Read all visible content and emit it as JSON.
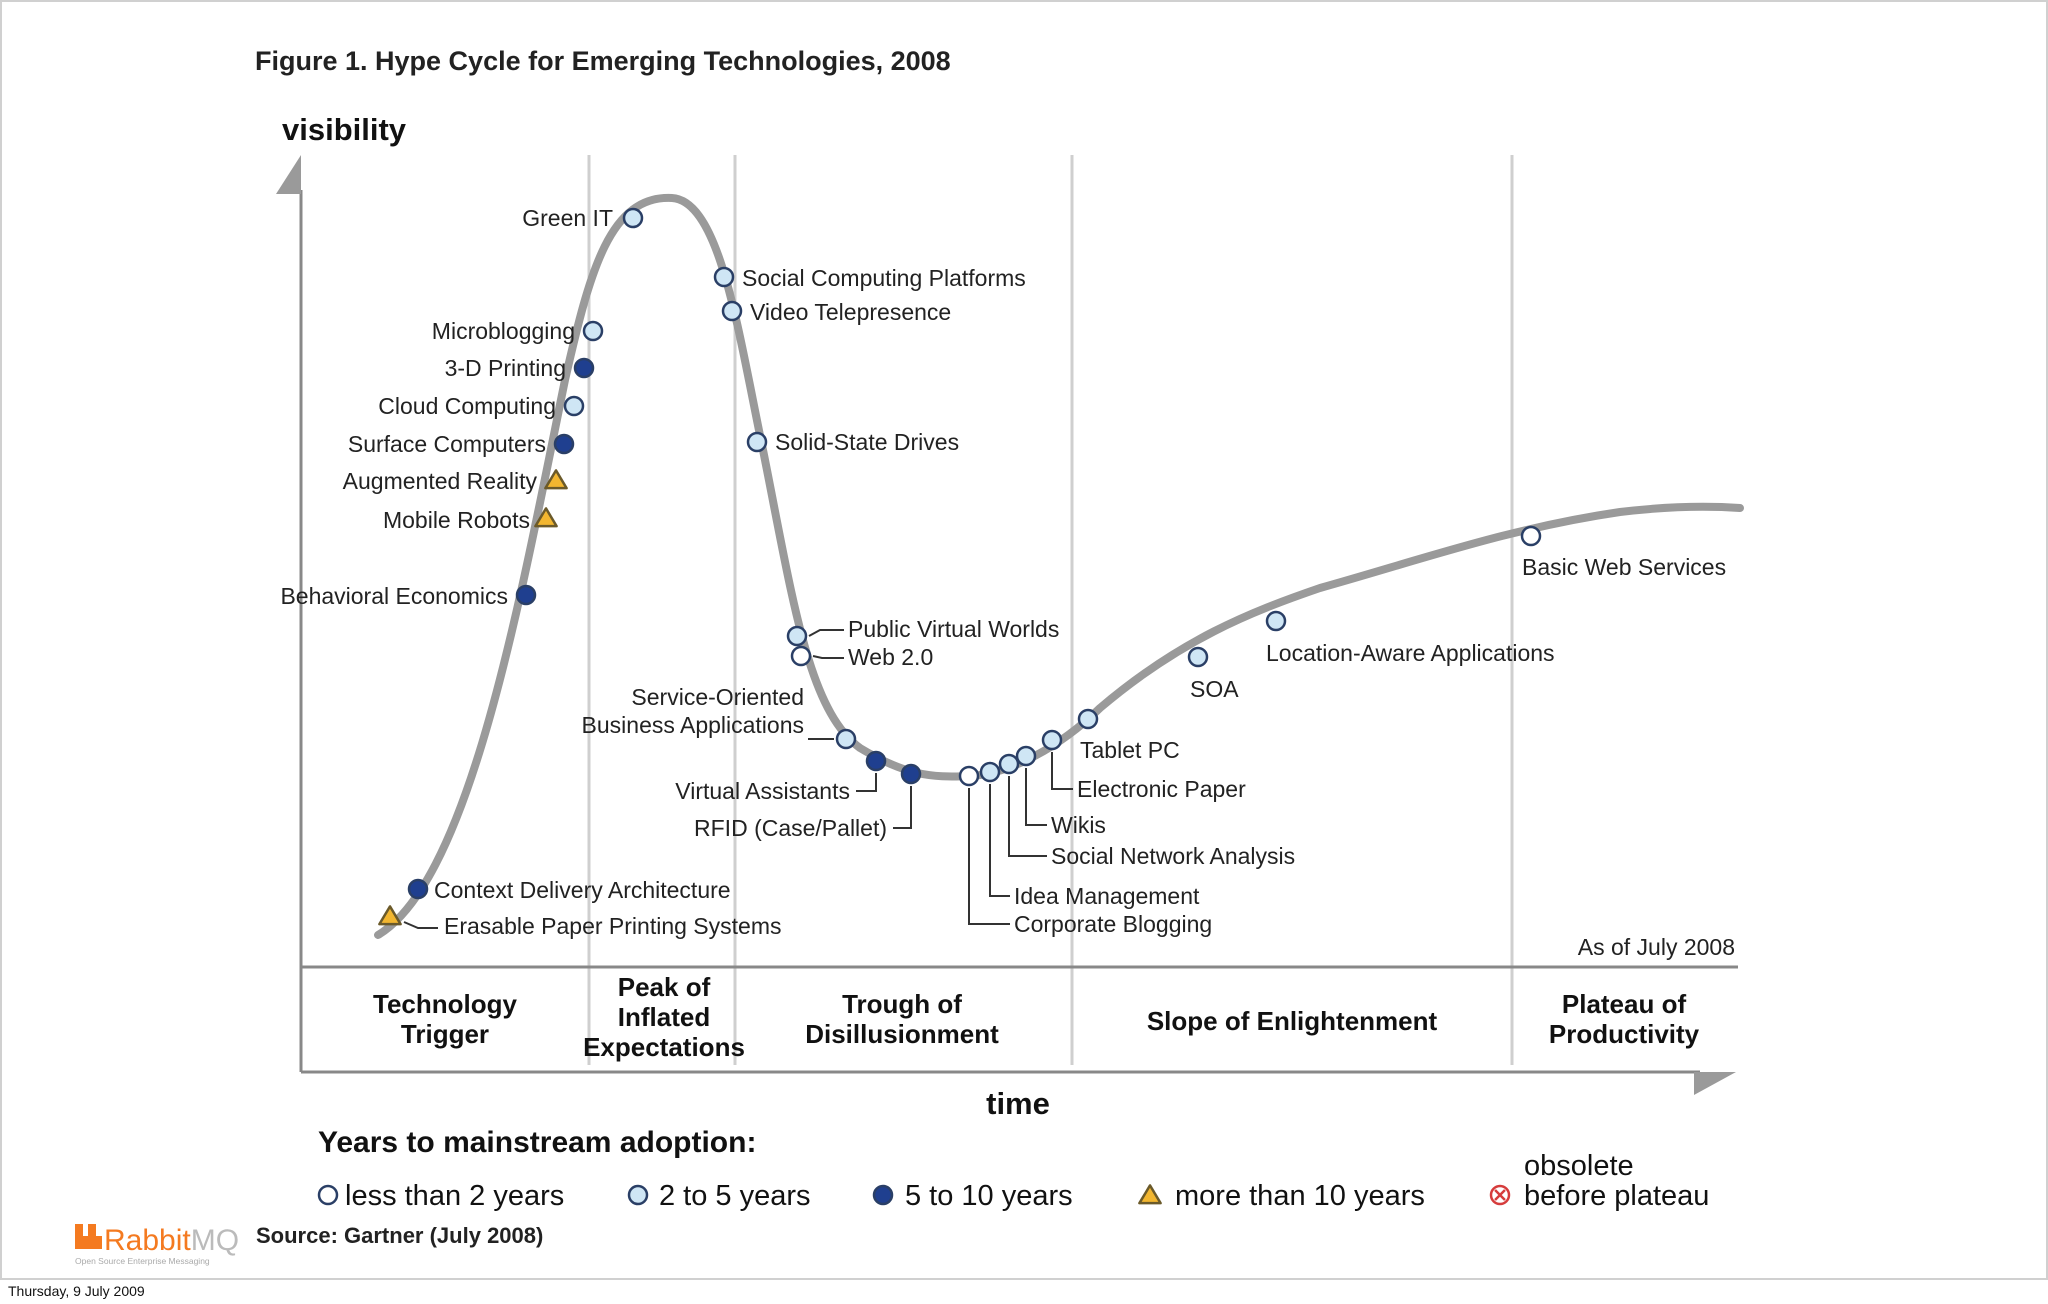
{
  "figure_title": "Figure 1. Hype Cycle for Emerging Technologies, 2008",
  "axes": {
    "y_label": "visibility",
    "x_label": "time"
  },
  "as_of": "As of July 2008",
  "source": "Source: Gartner (July 2008)",
  "footer_date": "Thursday, 9 July 2009",
  "logo": {
    "text_rabbit": "Rabbit",
    "text_mq": "MQ",
    "tagline": "Open Source Enterprise Messaging",
    "color": "#f47a20"
  },
  "colors": {
    "curve": "#9a9a9a",
    "grid": "#cfcfcf",
    "less_than_2": "#ffffff",
    "2_to_5": "#cfe6f5",
    "5_to_10": "#1f3f8f",
    "more_than_10": "#f2b630",
    "obsolete": "#d63c3c",
    "marker_stroke": "#2a3f66"
  },
  "phases": [
    {
      "id": "trigger",
      "lines": [
        "Technology",
        "Trigger"
      ]
    },
    {
      "id": "peak",
      "lines": [
        "Peak of",
        "Inflated",
        "Expectations"
      ]
    },
    {
      "id": "trough",
      "lines": [
        "Trough of",
        "Disillusionment"
      ]
    },
    {
      "id": "slope",
      "lines": [
        "Slope of Enlightenment"
      ]
    },
    {
      "id": "plateau",
      "lines": [
        "Plateau of",
        "Productivity"
      ]
    }
  ],
  "legend": {
    "title": "Years to mainstream adoption:",
    "items": [
      {
        "id": "lt2",
        "label": "less than 2 years",
        "marker": "circle-white"
      },
      {
        "id": "2to5",
        "label": "2 to 5 years",
        "marker": "circle-light-blue"
      },
      {
        "id": "5to10",
        "label": "5 to 10 years",
        "marker": "circle-dark-blue"
      },
      {
        "id": "gt10",
        "label": "more than 10 years",
        "marker": "triangle-yellow"
      },
      {
        "id": "obsolete",
        "label_top": "obsolete",
        "label_bottom": "before plateau",
        "marker": "circle-x-red"
      }
    ]
  },
  "technologies": [
    {
      "name": "Green IT",
      "category": "2to5"
    },
    {
      "name": "Social Computing Platforms",
      "category": "2to5"
    },
    {
      "name": "Video Telepresence",
      "category": "2to5"
    },
    {
      "name": "Microblogging",
      "category": "2to5"
    },
    {
      "name": "3-D Printing",
      "category": "5to10"
    },
    {
      "name": "Cloud Computing",
      "category": "2to5"
    },
    {
      "name": "Surface Computers",
      "category": "5to10"
    },
    {
      "name": "Augmented Reality",
      "category": "gt10"
    },
    {
      "name": "Mobile Robots",
      "category": "gt10"
    },
    {
      "name": "Solid-State Drives",
      "category": "2to5"
    },
    {
      "name": "Behavioral Economics",
      "category": "5to10"
    },
    {
      "name": "Public Virtual Worlds",
      "category": "2to5"
    },
    {
      "name": "Web 2.0",
      "category": "lt2"
    },
    {
      "name": "Service-Oriented Business Applications",
      "lines": [
        "Service-Oriented",
        "Business Applications"
      ],
      "category": "2to5"
    },
    {
      "name": "Virtual Assistants",
      "category": "5to10"
    },
    {
      "name": "RFID (Case/Pallet)",
      "category": "5to10"
    },
    {
      "name": "Corporate Blogging",
      "category": "lt2"
    },
    {
      "name": "Idea Management",
      "category": "2to5"
    },
    {
      "name": "Social Network Analysis",
      "category": "2to5"
    },
    {
      "name": "Wikis",
      "category": "2to5"
    },
    {
      "name": "Electronic Paper",
      "category": "2to5"
    },
    {
      "name": "Tablet PC",
      "category": "2to5"
    },
    {
      "name": "SOA",
      "category": "2to5"
    },
    {
      "name": "Location-Aware Applications",
      "category": "2to5"
    },
    {
      "name": "Basic Web Services",
      "category": "lt2"
    },
    {
      "name": "Context Delivery Architecture",
      "category": "5to10"
    },
    {
      "name": "Erasable Paper Printing Systems",
      "category": "gt10"
    }
  ]
}
